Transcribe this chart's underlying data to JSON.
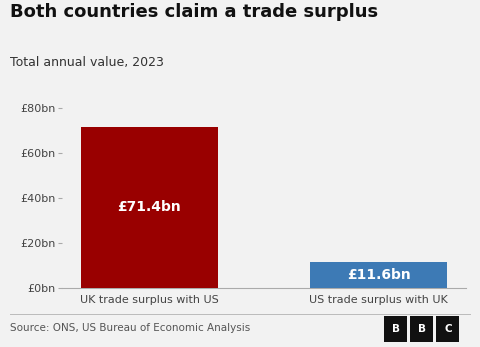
{
  "title": "Both countries claim a trade surplus",
  "subtitle": "Total annual value, 2023",
  "categories": [
    "UK trade surplus with US",
    "US trade surplus with UK"
  ],
  "values": [
    71.4,
    11.6
  ],
  "bar_colors": [
    "#990000",
    "#3d7ab5"
  ],
  "bar_labels": [
    "£71.4bn",
    "£11.6bn"
  ],
  "ylim": [
    0,
    80
  ],
  "yticks": [
    0,
    20,
    40,
    60,
    80
  ],
  "ytick_labels": [
    "£0bn",
    "£20bn",
    "£40bn",
    "£60bn",
    "£80bn"
  ],
  "source_text": "Source: ONS, US Bureau of Economic Analysis",
  "background_color": "#f2f2f2",
  "title_fontsize": 13,
  "subtitle_fontsize": 9,
  "bar_label_fontsize": 10,
  "source_fontsize": 7.5,
  "tick_fontsize": 8
}
